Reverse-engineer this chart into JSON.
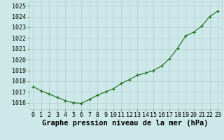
{
  "hours": [
    0,
    1,
    2,
    3,
    4,
    5,
    6,
    7,
    8,
    9,
    10,
    11,
    12,
    13,
    14,
    15,
    16,
    17,
    18,
    19,
    20,
    21,
    22,
    23
  ],
  "pressure": [
    1017.5,
    1017.1,
    1016.8,
    1016.5,
    1016.2,
    1016.0,
    1015.95,
    1016.3,
    1016.7,
    1017.0,
    1017.3,
    1017.8,
    1018.15,
    1018.55,
    1018.75,
    1019.0,
    1019.4,
    1020.1,
    1021.05,
    1022.2,
    1022.55,
    1023.1,
    1024.0,
    1024.5
  ],
  "line_color": "#1a6b1a",
  "marker_color": "#1a6b1a",
  "bg_color": "#cce8e8",
  "grid_color": "#b0cccc",
  "title": "Graphe pression niveau de la mer (hPa)",
  "ylim_min": 1015.4,
  "ylim_max": 1025.4,
  "yticks": [
    1016,
    1017,
    1018,
    1019,
    1020,
    1021,
    1022,
    1023,
    1024,
    1025
  ],
  "xticks": [
    0,
    1,
    2,
    3,
    4,
    5,
    6,
    7,
    8,
    9,
    10,
    11,
    12,
    13,
    14,
    15,
    16,
    17,
    18,
    19,
    20,
    21,
    22,
    23
  ],
  "title_fontsize": 7.5,
  "tick_fontsize": 6.0
}
